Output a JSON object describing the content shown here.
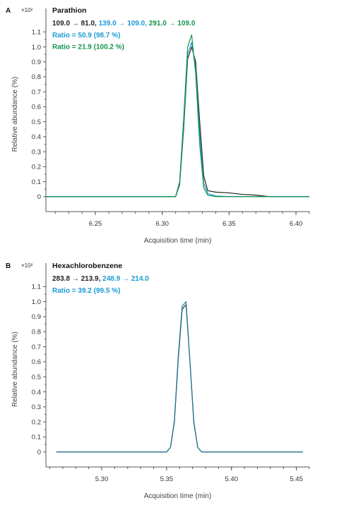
{
  "colors": {
    "black": "#222222",
    "blue": "#1a9ad6",
    "green": "#14964a",
    "teal": "#1f7c97"
  },
  "chart_data": [
    {
      "type": "line",
      "panel_label": "A",
      "multiplier": "×10²",
      "title": "Parathion",
      "transitions": [
        {
          "text": "109.0 → 81.0,",
          "color": "#222222"
        },
        {
          "text": "139.0 → 109.0,",
          "color": "#1a9ad6"
        },
        {
          "text": "291.0 → 109.0",
          "color": "#14964a"
        }
      ],
      "ratios": [
        {
          "text": "Ratio = 50.9 (98.7 %)",
          "color": "#1a9ad6"
        },
        {
          "text": "Ratio = 21.9 (100.2 %)",
          "color": "#14964a"
        }
      ],
      "xlabel": "Acquisition time (min)",
      "ylabel": "Relative abundance (%)",
      "xlim": [
        6.213,
        6.41
      ],
      "ylim": [
        -0.1,
        1.2
      ],
      "xticks": [
        "6.25",
        "6.30",
        "6.35",
        "6.40"
      ],
      "yticks": [
        "0",
        "0.1",
        "0.2",
        "0.3",
        "0.4",
        "0.5",
        "0.6",
        "0.7",
        "0.8",
        "0.9",
        "1.0",
        "1.1"
      ],
      "series": [
        {
          "color": "#222222",
          "x": [
            6.213,
            6.3,
            6.31,
            6.313,
            6.316,
            6.319,
            6.322,
            6.325,
            6.328,
            6.331,
            6.334,
            6.34,
            6.35,
            6.36,
            6.37,
            6.38,
            6.39,
            6.4,
            6.41
          ],
          "y": [
            0.0,
            0.0,
            0.0,
            0.08,
            0.45,
            0.92,
            1.0,
            0.9,
            0.5,
            0.14,
            0.04,
            0.03,
            0.025,
            0.015,
            0.01,
            0.0,
            0.0,
            0.0,
            0.0
          ]
        },
        {
          "color": "#1a9ad6",
          "x": [
            6.213,
            6.3,
            6.31,
            6.313,
            6.316,
            6.319,
            6.322,
            6.325,
            6.328,
            6.331,
            6.334,
            6.34,
            6.35,
            6.41
          ],
          "y": [
            0.0,
            0.0,
            0.0,
            0.09,
            0.48,
            0.95,
            1.03,
            0.86,
            0.42,
            0.09,
            0.02,
            0.005,
            0.0,
            0.0
          ]
        },
        {
          "color": "#14964a",
          "x": [
            6.213,
            6.3,
            6.31,
            6.313,
            6.316,
            6.319,
            6.322,
            6.325,
            6.328,
            6.331,
            6.334,
            6.34,
            6.35,
            6.41
          ],
          "y": [
            0.0,
            0.0,
            0.0,
            0.1,
            0.52,
            1.0,
            1.08,
            0.82,
            0.35,
            0.06,
            0.01,
            0.0,
            0.0,
            0.0
          ]
        }
      ]
    },
    {
      "type": "line",
      "panel_label": "B",
      "multiplier": "×10²",
      "title": "Hexachlorobenzene",
      "transitions": [
        {
          "text": "283.8 → 213.9,",
          "color": "#222222"
        },
        {
          "text": "248.9 → 214.0",
          "color": "#1a9ad6"
        }
      ],
      "ratios": [
        {
          "text": "Ratio = 39.2 (99.5 %)",
          "color": "#1a9ad6"
        }
      ],
      "xlabel": "Acquisition time (min)",
      "ylabel": "Relative abundance (%)",
      "xlim": [
        5.257,
        5.46
      ],
      "ylim": [
        -0.1,
        1.2
      ],
      "xticks": [
        "5.30",
        "5.35",
        "5.40",
        "5.45"
      ],
      "yticks": [
        "0",
        "0.1",
        "0.2",
        "0.3",
        "0.4",
        "0.5",
        "0.6",
        "0.7",
        "0.8",
        "0.9",
        "1.0",
        "1.1"
      ],
      "series": [
        {
          "color": "#222222",
          "x": [
            5.265,
            5.35,
            5.353,
            5.356,
            5.359,
            5.362,
            5.365,
            5.368,
            5.371,
            5.374,
            5.377,
            5.455
          ],
          "y": [
            0.0,
            0.0,
            0.03,
            0.2,
            0.62,
            0.95,
            0.98,
            0.6,
            0.2,
            0.03,
            0.0,
            0.0
          ]
        },
        {
          "color": "#1f7c97",
          "x": [
            5.265,
            5.35,
            5.353,
            5.356,
            5.359,
            5.362,
            5.365,
            5.368,
            5.371,
            5.374,
            5.377,
            5.455
          ],
          "y": [
            0.0,
            0.0,
            0.03,
            0.21,
            0.64,
            0.97,
            1.0,
            0.6,
            0.19,
            0.03,
            0.0,
            0.0
          ]
        }
      ]
    }
  ]
}
